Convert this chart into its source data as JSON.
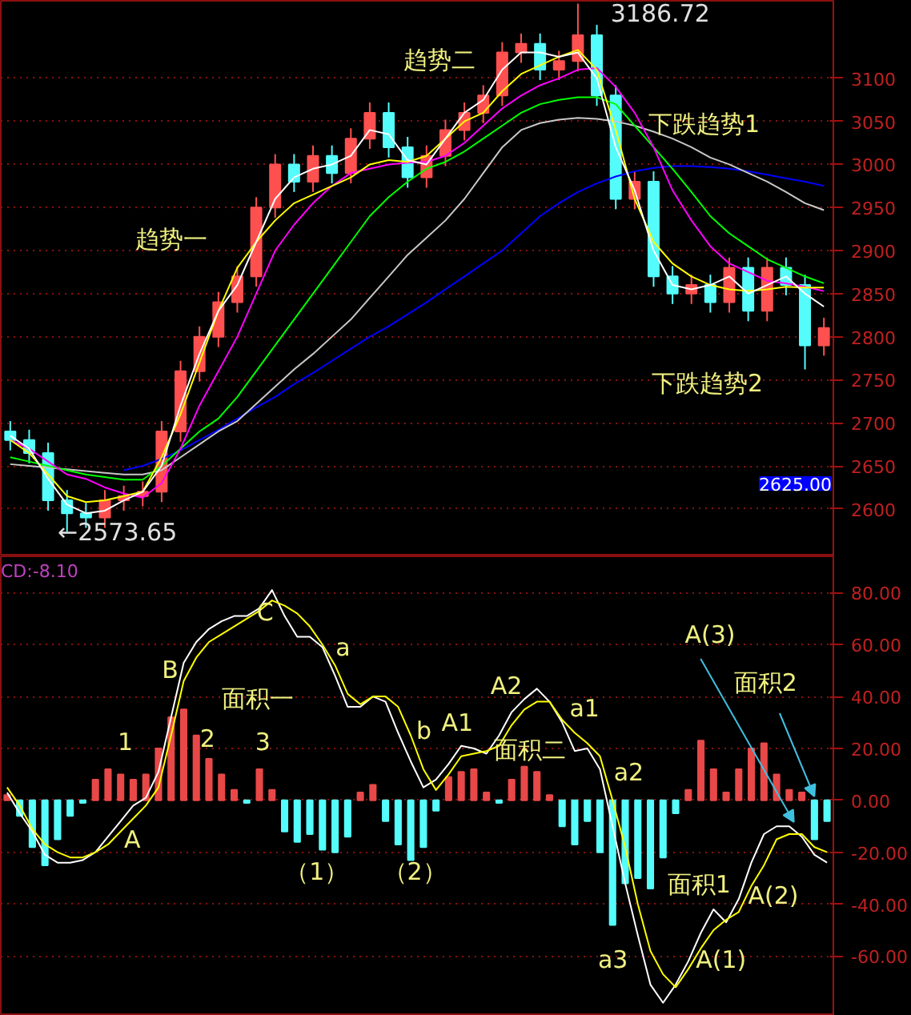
{
  "chart_data": [
    {
      "type": "candlestick",
      "categories": [
        null,
        null,
        null,
        null,
        null,
        null,
        null,
        null,
        null,
        null,
        null,
        null,
        null,
        null,
        null,
        null,
        null,
        null,
        null,
        null,
        null,
        null,
        null,
        null,
        null,
        null,
        null,
        null,
        null,
        null,
        null,
        null,
        null,
        null,
        null,
        null,
        null,
        null,
        null,
        null,
        null,
        null,
        null,
        null
      ],
      "ohlc": [
        [
          2690,
          2702,
          2668,
          2680
        ],
        [
          2680,
          2692,
          2653,
          2665
        ],
        [
          2665,
          2677,
          2598,
          2610
        ],
        [
          2610,
          2622,
          2573.65,
          2595
        ],
        [
          2595,
          2607,
          2578,
          2590
        ],
        [
          2590,
          2622,
          2578,
          2610
        ],
        [
          2610,
          2627,
          2598,
          2615
        ],
        [
          2615,
          2632,
          2603,
          2620
        ],
        [
          2620,
          2702,
          2608,
          2690
        ],
        [
          2690,
          2772,
          2678,
          2760
        ],
        [
          2760,
          2812,
          2748,
          2800
        ],
        [
          2800,
          2852,
          2788,
          2840
        ],
        [
          2840,
          2882,
          2828,
          2870
        ],
        [
          2870,
          2962,
          2858,
          2950
        ],
        [
          2950,
          3012,
          2938,
          3000
        ],
        [
          3000,
          3012,
          2968,
          2980
        ],
        [
          2980,
          3022,
          2968,
          3010
        ],
        [
          3010,
          3022,
          2978,
          2990
        ],
        [
          2990,
          3042,
          2978,
          3030
        ],
        [
          3030,
          3072,
          3018,
          3060
        ],
        [
          3060,
          3072,
          3008,
          3020
        ],
        [
          3020,
          3032,
          2973,
          2985
        ],
        [
          2985,
          3022,
          2973,
          3010
        ],
        [
          3010,
          3052,
          2998,
          3040
        ],
        [
          3040,
          3072,
          3028,
          3060
        ],
        [
          3060,
          3092,
          3048,
          3080
        ],
        [
          3080,
          3142,
          3068,
          3130
        ],
        [
          3130,
          3152,
          3118,
          3140
        ],
        [
          3140,
          3152,
          3098,
          3110
        ],
        [
          3110,
          3132,
          3098,
          3120
        ],
        [
          3120,
          3186.72,
          3108,
          3150
        ],
        [
          3150,
          3162,
          3068,
          3080
        ],
        [
          3080,
          3092,
          2948,
          2960
        ],
        [
          2960,
          2992,
          2948,
          2980
        ],
        [
          2980,
          2992,
          2858,
          2870
        ],
        [
          2870,
          2882,
          2838,
          2850
        ],
        [
          2850,
          2872,
          2838,
          2860
        ],
        [
          2860,
          2872,
          2828,
          2840
        ],
        [
          2840,
          2892,
          2828,
          2880
        ],
        [
          2880,
          2892,
          2818,
          2830
        ],
        [
          2830,
          2892,
          2818,
          2880
        ],
        [
          2880,
          2892,
          2848,
          2860
        ],
        [
          2860,
          2872,
          2762,
          2790
        ],
        [
          2790,
          2822,
          2778,
          2810
        ]
      ],
      "colors": [
        "#54fcfc",
        "#54fcfc",
        "#54fcfc",
        "#54fcfc",
        "#54fcfc",
        "#ff5050",
        "#ff5050",
        "#ff5050",
        "#ff5050",
        "#ff5050",
        "#ff5050",
        "#ff5050",
        "#ff5050",
        "#ff5050",
        "#ff5050",
        "#54fcfc",
        "#ff5050",
        "#54fcfc",
        "#ff5050",
        "#ff5050",
        "#54fcfc",
        "#54fcfc",
        "#ff5050",
        "#ff5050",
        "#ff5050",
        "#ff5050",
        "#ff5050",
        "#ff5050",
        "#54fcfc",
        "#ff5050",
        "#ff5050",
        "#54fcfc",
        "#54fcfc",
        "#ff5050",
        "#54fcfc",
        "#54fcfc",
        "#ff5050",
        "#54fcfc",
        "#ff5050",
        "#54fcfc",
        "#ff5050",
        "#54fcfc",
        "#54fcfc",
        "#ff5050"
      ],
      "series": [
        {
          "type": "line",
          "color": "#0000ff",
          "values": [
            null,
            null,
            null,
            null,
            null,
            null,
            2645,
            2650,
            2658,
            2668,
            2680,
            2692,
            2705,
            2718,
            2730,
            2745,
            2758,
            2772,
            2786,
            2800,
            2812,
            2826,
            2840,
            2855,
            2870,
            2885,
            2900,
            2920,
            2940,
            2955,
            2968,
            2978,
            2986,
            2992,
            2996,
            2998,
            2998,
            2997,
            2995,
            2992,
            2988,
            2984,
            2980,
            2975
          ]
        },
        {
          "type": "line",
          "color": "#c8c8c8",
          "values": [
            2652,
            2650,
            2648,
            2646,
            2644,
            2642,
            2640,
            2640,
            2645,
            2660,
            2675,
            2690,
            2702,
            2722,
            2742,
            2762,
            2780,
            2800,
            2820,
            2845,
            2870,
            2895,
            2915,
            2935,
            2960,
            2990,
            3020,
            3040,
            3048,
            3052,
            3054,
            3053,
            3050,
            3045,
            3038,
            3030,
            3020,
            3008,
            3000,
            2990,
            2980,
            2968,
            2955,
            2947
          ]
        },
        {
          "type": "line",
          "color": "#00ff00",
          "values": [
            2660,
            2655,
            2650,
            2645,
            2640,
            2637,
            2634,
            2634,
            2650,
            2670,
            2690,
            2705,
            2730,
            2760,
            2790,
            2820,
            2850,
            2880,
            2910,
            2940,
            2962,
            2980,
            2995,
            3003,
            3015,
            3030,
            3045,
            3060,
            3070,
            3075,
            3078,
            3078,
            3070,
            3045,
            3020,
            2995,
            2968,
            2940,
            2920,
            2905,
            2890,
            2880,
            2870,
            2862
          ]
        },
        {
          "type": "line",
          "color": "#ff00ff",
          "values": [
            2680,
            2670,
            2655,
            2640,
            2635,
            2625,
            2618,
            2613,
            2630,
            2670,
            2720,
            2760,
            2800,
            2850,
            2900,
            2930,
            2955,
            2975,
            2990,
            2995,
            3000,
            3002,
            3003,
            3010,
            3025,
            3045,
            3065,
            3080,
            3092,
            3100,
            3110,
            3112,
            3090,
            3060,
            3020,
            2970,
            2935,
            2905,
            2885,
            2875,
            2865,
            2862,
            2858,
            2853
          ]
        },
        {
          "type": "line",
          "color": "#ffff00",
          "values": [
            2680,
            2665,
            2640,
            2615,
            2608,
            2610,
            2615,
            2620,
            2660,
            2710,
            2770,
            2830,
            2880,
            2910,
            2935,
            2955,
            2965,
            2975,
            2985,
            3000,
            3005,
            3003,
            3010,
            3030,
            3050,
            3060,
            3085,
            3105,
            3115,
            3125,
            3133,
            3110,
            3040,
            2960,
            2910,
            2885,
            2870,
            2860,
            2855,
            2853,
            2855,
            2858,
            2857,
            2857
          ]
        },
        {
          "type": "line",
          "color": "#ffffff",
          "values": [
            2685,
            2670,
            2635,
            2605,
            2595,
            2598,
            2610,
            2620,
            2650,
            2720,
            2780,
            2830,
            2860,
            2910,
            2960,
            2985,
            2995,
            3000,
            3010,
            3040,
            3035,
            3005,
            3000,
            3030,
            3060,
            3075,
            3110,
            3130,
            3130,
            3125,
            3130,
            3100,
            3020,
            2970,
            2900,
            2860,
            2855,
            2860,
            2870,
            2850,
            2860,
            2870,
            2850,
            2835
          ]
        }
      ],
      "ylim": [
        2545,
        3190
      ],
      "yticks": [
        2600,
        2650,
        2700,
        2750,
        2800,
        2850,
        2900,
        2950,
        3000,
        3050,
        3100
      ],
      "grid": "y",
      "tick_labels": "y",
      "annotations": [
        "趋势一",
        "趋势二",
        "下跌趋势1",
        "下跌趋势2",
        "3186.72",
        "←2573.65",
        "2625.00"
      ]
    },
    {
      "type": "bar",
      "categories": [
        null,
        null,
        null,
        null,
        null,
        null,
        null,
        null,
        null,
        null,
        null,
        null,
        null,
        null,
        null,
        null,
        null,
        null,
        null,
        null,
        null,
        null,
        null,
        null,
        null,
        null,
        null,
        null,
        null,
        null,
        null,
        null,
        null,
        null,
        null,
        null,
        null,
        null,
        null,
        null,
        null,
        null,
        null,
        null,
        null,
        null,
        null,
        null,
        null,
        null,
        null,
        null,
        null,
        null,
        null,
        null,
        null,
        null,
        null,
        null,
        null,
        null,
        null,
        null,
        null,
        null
      ],
      "series": [
        {
          "type": "bar",
          "values": [
            2,
            -6,
            -18,
            -25,
            -15,
            -6,
            -1,
            8,
            12,
            10,
            8,
            10,
            20,
            32,
            35,
            25,
            16,
            10,
            4,
            -1,
            12,
            4,
            -12,
            -16,
            -13,
            -19,
            -20,
            -14,
            3,
            6,
            -8,
            -17,
            -23,
            -18,
            -4,
            9,
            11,
            12,
            3,
            -1,
            8,
            13,
            11,
            2,
            -10,
            -17,
            -8,
            -20,
            -48,
            -32,
            -30,
            -34,
            -22,
            -5,
            4,
            23,
            12,
            3,
            12,
            20,
            22,
            10,
            4,
            3,
            -15,
            -8
          ],
          "colors": [
            "#e84848",
            "#54fcfc",
            "#54fcfc",
            "#54fcfc",
            "#54fcfc",
            "#54fcfc",
            "#54fcfc",
            "#e84848",
            "#e84848",
            "#e84848",
            "#e84848",
            "#e84848",
            "#e84848",
            "#e84848",
            "#e84848",
            "#e84848",
            "#e84848",
            "#e84848",
            "#e84848",
            "#54fcfc",
            "#e84848",
            "#e84848",
            "#54fcfc",
            "#54fcfc",
            "#54fcfc",
            "#54fcfc",
            "#54fcfc",
            "#54fcfc",
            "#e84848",
            "#e84848",
            "#54fcfc",
            "#54fcfc",
            "#54fcfc",
            "#54fcfc",
            "#54fcfc",
            "#e84848",
            "#e84848",
            "#e84848",
            "#e84848",
            "#54fcfc",
            "#e84848",
            "#e84848",
            "#e84848",
            "#e84848",
            "#54fcfc",
            "#54fcfc",
            "#54fcfc",
            "#54fcfc",
            "#54fcfc",
            "#54fcfc",
            "#54fcfc",
            "#54fcfc",
            "#54fcfc",
            "#54fcfc",
            "#e84848",
            "#e84848",
            "#e84848",
            "#e84848",
            "#e84848",
            "#e84848",
            "#e84848",
            "#e84848",
            "#e84848",
            "#e84848",
            "#54fcfc",
            "#54fcfc"
          ]
        },
        {
          "type": "line",
          "color": "#ffffff",
          "values": [
            3,
            -5,
            -12,
            -21,
            -24,
            -24,
            -23,
            -20,
            -14,
            -8,
            -2,
            1,
            11,
            32,
            53,
            61,
            66,
            69,
            71,
            71,
            74,
            81,
            71,
            63,
            63,
            59,
            48,
            36,
            36,
            40,
            38,
            26,
            15,
            5,
            8,
            14,
            21,
            20,
            18,
            25,
            34,
            39,
            43,
            38,
            30,
            19,
            20,
            12,
            -10,
            -32,
            -52,
            -71,
            -78,
            -71,
            -62,
            -51,
            -42,
            -47,
            -38,
            -24,
            -13,
            -10,
            -10,
            -14,
            -21,
            -24
          ]
        },
        {
          "type": "line",
          "color": "#ffff00",
          "values": [
            5,
            -2,
            -11,
            -17,
            -20,
            -22,
            -22,
            -20,
            -17,
            -12,
            -7,
            -2,
            5,
            25,
            46,
            55,
            61,
            64,
            67,
            70,
            73,
            77,
            75,
            72,
            67,
            60,
            52,
            41,
            37,
            40,
            40,
            36,
            25,
            12,
            4,
            10,
            17,
            18,
            19,
            21,
            29,
            35,
            38,
            38,
            31,
            26,
            22,
            17,
            0,
            -18,
            -40,
            -58,
            -67,
            -72,
            -65,
            -57,
            -50,
            -46,
            -43,
            -33,
            -25,
            -15,
            -13,
            -13,
            -18,
            -20
          ]
        }
      ],
      "ylim": [
        -83,
        94
      ],
      "yticks": [
        {
          "value": 80,
          "label": "80.00"
        },
        {
          "value": 60,
          "label": "60.00"
        },
        {
          "value": 40,
          "label": "40.00"
        },
        {
          "value": 20,
          "label": "20.00"
        },
        {
          "value": 0,
          "label": "0.00"
        },
        {
          "value": -20,
          "label": "-20.00"
        },
        {
          "value": -40,
          "label": "-40.00"
        },
        {
          "value": -60,
          "label": "-60.00"
        }
      ],
      "grid": "y",
      "tick_labels": "y",
      "annotations": [
        "CD:-8.10",
        "1",
        "A",
        "B",
        "2",
        "3",
        "C",
        "a",
        "面积一",
        "b",
        "A1",
        "（1）",
        "（2）",
        "A2",
        "面积二",
        "a1",
        "a2",
        "a3",
        "面积1",
        "A(1)",
        "A(2)",
        "A(3)",
        "面积2"
      ]
    }
  ]
}
